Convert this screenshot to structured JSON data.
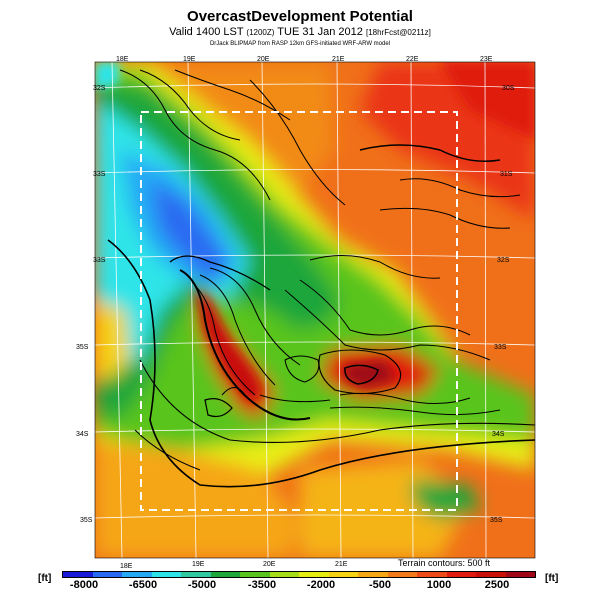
{
  "header": {
    "title": "OvercastDevelopment Potential",
    "subtitle_main": "Valid 1400 LST",
    "subtitle_code": "(1200Z)",
    "subtitle_date": "TUE 31 Jan 2012",
    "subtitle_forecast": "[18hrFcst@0211z]",
    "credit": "DrJack BLIPMAP from RASP 12km GFS-initiated WRF-ARW model"
  },
  "map": {
    "top_lon_labels": [
      "18E",
      "19E",
      "20E",
      "21E",
      "22E",
      "23E"
    ],
    "bottom_lon_labels": [
      "18E",
      "19E",
      "20E",
      "21E"
    ],
    "left_lat_labels": [
      "32S",
      "33S",
      "33S",
      "35S",
      "34S",
      "35S"
    ],
    "right_lat_labels": [
      "30S",
      "31S",
      "32S",
      "33S",
      "34S",
      "35S"
    ],
    "terrain_note": "Terrain contours: 500 ft"
  },
  "legend": {
    "unit_left": "[ft]",
    "unit_right": "[ft]",
    "labels": [
      "-8000",
      "-6500",
      "-5000",
      "-3500",
      "-2000",
      "-500",
      "1000",
      "2500"
    ],
    "colors": [
      "#1a1ad6",
      "#2a6af2",
      "#27aaf5",
      "#2ee4e8",
      "#30c8a0",
      "#1ea63a",
      "#5ac41e",
      "#a8dc1a",
      "#e4ee12",
      "#f5d214",
      "#f5a614",
      "#f27a18",
      "#ec4a16",
      "#e01c10",
      "#c81008",
      "#a00818"
    ]
  }
}
